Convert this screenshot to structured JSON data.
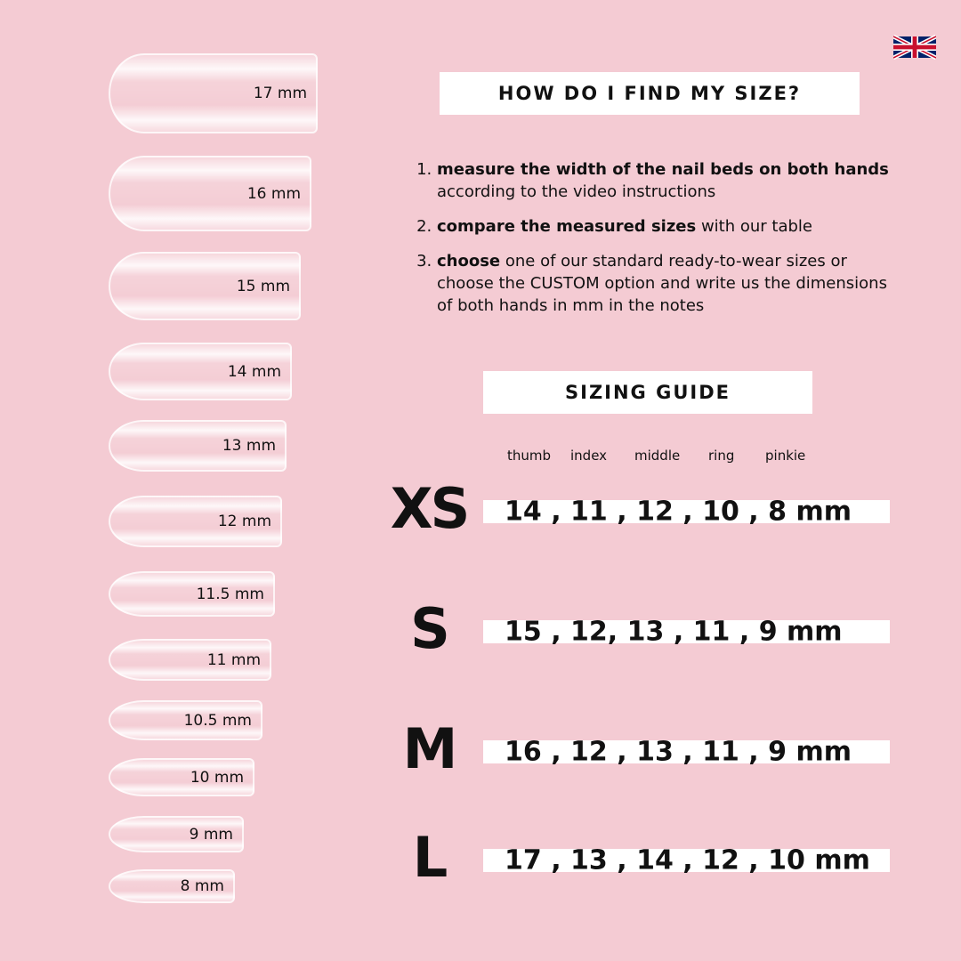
{
  "nails": [
    "17 mm",
    "16 mm",
    "15 mm",
    "14 mm",
    "13 mm",
    "12 mm",
    "11.5 mm",
    "11 mm",
    "10.5 mm",
    "10 mm",
    "9 mm",
    "8 mm"
  ],
  "find_title": "HOW DO I FIND MY SIZE?",
  "steps": [
    {
      "bold": "measure the width of the nail beds on both hands",
      "rest": " according to the video instructions"
    },
    {
      "bold": "compare the measured sizes",
      "rest": " with our table"
    },
    {
      "bold": "choose",
      "rest": " one of our standard ready-to-wear sizes or choose the CUSTOM option and write us the dimensions of both hands in mm in the notes"
    }
  ],
  "guide_title": "SIZING GUIDE",
  "fingers": [
    "thumb",
    "index",
    "middle",
    "ring",
    "pinkie"
  ],
  "sizes": [
    {
      "label": "XS",
      "values": "14 , 11 , 12 , 10 , 8 mm"
    },
    {
      "label": "S",
      "values": "15 , 12, 13 , 11 , 9 mm"
    },
    {
      "label": "M",
      "values": "16 , 12 , 13 , 11 , 9 mm"
    },
    {
      "label": "L",
      "values": "17 , 13 , 14 , 12 , 10 mm"
    }
  ],
  "flag_icon": "uk-flag-icon",
  "background": "#f4cbd3"
}
